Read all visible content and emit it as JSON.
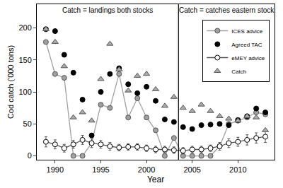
{
  "chart_data": {
    "type": "scatter",
    "x_label": "Year",
    "y_label": "Cod catch ('000 tons)",
    "annotations": [
      "Catch = landings both stocks",
      "Catch = catches eastern stock"
    ],
    "divider_x": 2003.5,
    "x": [
      1989,
      1990,
      1991,
      1992,
      1993,
      1994,
      1995,
      1996,
      1997,
      1998,
      1999,
      2000,
      2001,
      2002,
      2003,
      2004,
      2005,
      2006,
      2007,
      2008,
      2009,
      2010,
      2011,
      2012,
      2013
    ],
    "series": [
      {
        "name": "ICES advice",
        "color": "#a0a0a0",
        "marker": "circle",
        "line_style": "solid",
        "values": [
          178,
          128,
          122,
          0,
          0,
          20,
          80,
          75,
          128,
          60,
          90,
          60,
          40,
          0,
          28,
          0,
          0,
          0,
          0,
          15,
          50,
          55,
          60,
          68,
          65
        ]
      },
      {
        "name": "Agreed TAC",
        "color": "#000000",
        "marker": "circle",
        "line_style": "none",
        "values": [
          198,
          195,
          158,
          130,
          88,
          32,
          100,
          128,
          137,
          112,
          98,
          108,
          86,
          57,
          53,
          45,
          42,
          48,
          49,
          50,
          48,
          56,
          62,
          74,
          68
        ]
      },
      {
        "name": "eMEY advice",
        "color": "#ffffff",
        "marker": "circle-open",
        "line_style": "solid",
        "values": [
          22,
          18,
          12,
          18,
          25,
          20,
          18,
          15,
          13,
          14,
          14,
          12,
          10,
          10,
          9,
          8,
          10,
          10,
          12,
          15,
          20,
          22,
          25,
          28,
          30
        ],
        "errors": [
          8,
          7,
          6,
          6,
          7,
          7,
          6,
          6,
          5,
          5,
          5,
          5,
          5,
          5,
          5,
          5,
          5,
          5,
          5,
          6,
          7,
          7,
          8,
          8,
          9
        ]
      },
      {
        "name": "Catch",
        "color": "#aaaaaa",
        "marker": "triangle-up",
        "line_style": "none",
        "values": [
          198,
          178,
          140,
          60,
          68,
          55,
          120,
          175,
          135,
          102,
          125,
          128,
          104,
          78,
          92,
          75,
          70,
          80,
          70,
          62,
          58,
          55,
          62,
          60,
          40
        ]
      }
    ],
    "xlim": [
      1988,
      2014
    ],
    "ylim": [
      -6,
      237
    ],
    "xticks": [
      1990,
      1995,
      2000,
      2005,
      2010
    ],
    "yticks": [
      0,
      50,
      100,
      150,
      200
    ],
    "grid": false,
    "legend": "top right"
  }
}
